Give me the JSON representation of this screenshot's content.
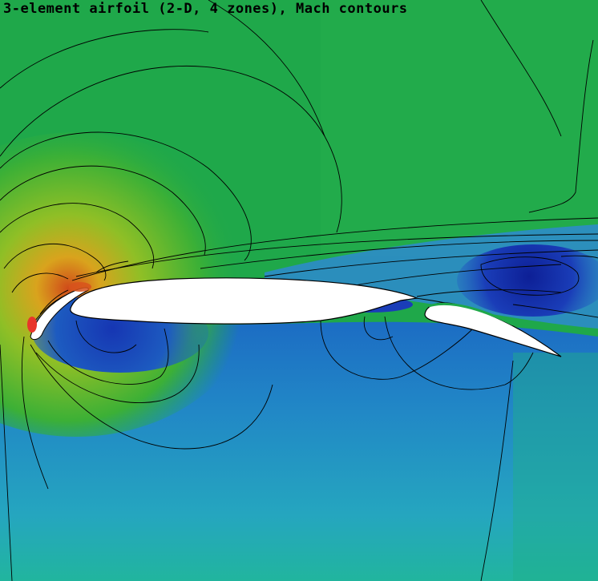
{
  "title": "3-element airfoil (2-D, 4 zones), Mach contours",
  "colors": {
    "freestream": "#1fa84a",
    "lower_field": "#2aa0c8",
    "low_mach": "#1a3db8",
    "deep_low": "#0d1f96",
    "stagnation_high": "#e8352a",
    "suction_yellow": "#e6c320",
    "body": "#ffffff",
    "contour_line": "#000000"
  }
}
